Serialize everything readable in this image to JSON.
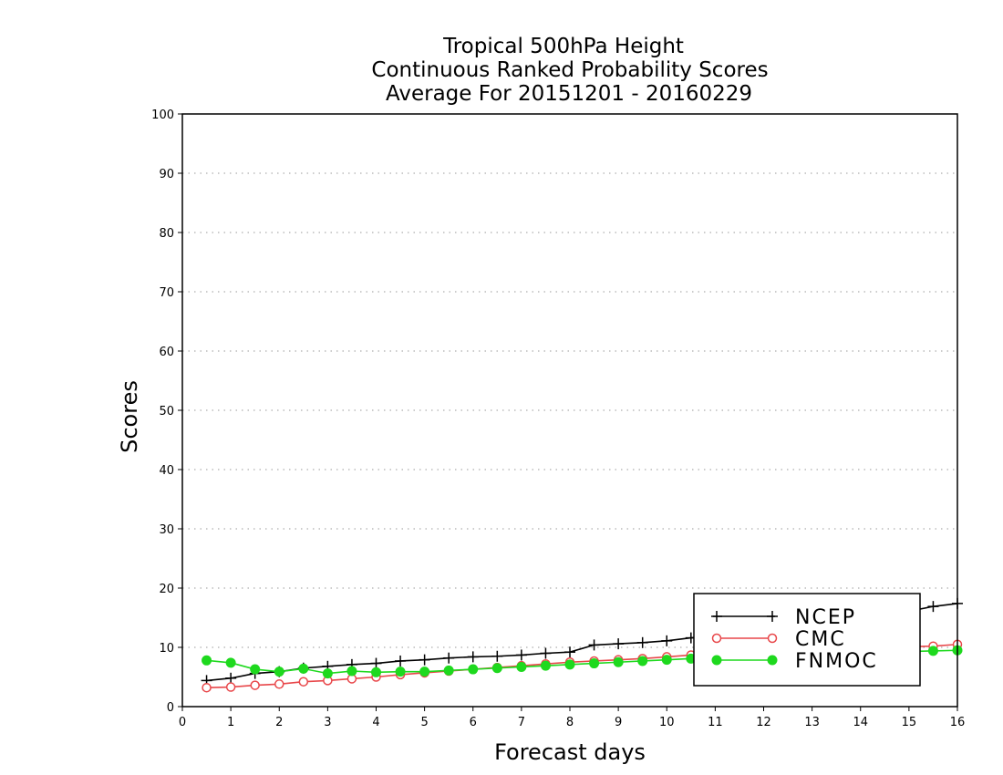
{
  "chart_data": {
    "type": "line",
    "title": [
      "Tropical 500hPa Height",
      "Continuous Ranked Probability Scores",
      "Average For 20151201 - 20160229"
    ],
    "xlabel": "Forecast days",
    "ylabel": "Scores",
    "xlim": [
      0,
      16
    ],
    "ylim": [
      0,
      100
    ],
    "xticks": [
      "0",
      "1",
      "2",
      "3",
      "4",
      "5",
      "6",
      "7",
      "8",
      "9",
      "10",
      "11",
      "12",
      "13",
      "14",
      "15",
      "16"
    ],
    "yticks": [
      "0",
      "10",
      "20",
      "30",
      "40",
      "50",
      "60",
      "70",
      "80",
      "90",
      "100"
    ],
    "grid": "horizontal dotted",
    "legend_position": "lower-right",
    "x": [
      0.5,
      1,
      1.5,
      2,
      2.5,
      3,
      3.5,
      4,
      4.5,
      5,
      5.5,
      6,
      6.5,
      7,
      7.5,
      8,
      8.5,
      9,
      9.5,
      10,
      10.5,
      11,
      11.5,
      12,
      12.5,
      13,
      13.5,
      14,
      14.5,
      15,
      15.5,
      16
    ],
    "series": [
      {
        "name": "NCEP",
        "color": "#000000",
        "marker": "plus",
        "values": [
          4.4,
          4.8,
          5.6,
          5.9,
          6.5,
          6.8,
          7.1,
          7.3,
          7.7,
          7.9,
          8.2,
          8.4,
          8.5,
          8.7,
          9.0,
          9.2,
          10.4,
          10.6,
          10.8,
          11.1,
          11.6,
          12.0,
          12.4,
          12.8,
          13.2,
          13.7,
          14.2,
          14.8,
          15.4,
          16.1,
          16.9,
          17.4
        ]
      },
      {
        "name": "CMC",
        "color": "#e8474a",
        "marker": "open-circle",
        "values": [
          3.2,
          3.3,
          3.6,
          3.8,
          4.2,
          4.4,
          4.7,
          5.0,
          5.4,
          5.7,
          6.0,
          6.3,
          6.6,
          6.9,
          7.2,
          7.5,
          7.7,
          7.9,
          8.1,
          8.4,
          8.7,
          8.9,
          9.1,
          9.3,
          9.5,
          9.7,
          9.8,
          9.9,
          10.0,
          10.1,
          10.2,
          10.5
        ]
      },
      {
        "name": "FNMOC",
        "color": "#1ed91e",
        "marker": "filled-circle",
        "values": [
          7.8,
          7.4,
          6.3,
          5.9,
          6.4,
          5.6,
          6.0,
          5.8,
          5.9,
          5.9,
          6.1,
          6.3,
          6.5,
          6.7,
          6.9,
          7.1,
          7.3,
          7.5,
          7.7,
          7.9,
          8.1,
          8.3,
          8.5,
          8.7,
          8.8,
          9.0,
          9.1,
          9.2,
          9.3,
          9.3,
          9.4,
          9.5
        ]
      }
    ]
  }
}
